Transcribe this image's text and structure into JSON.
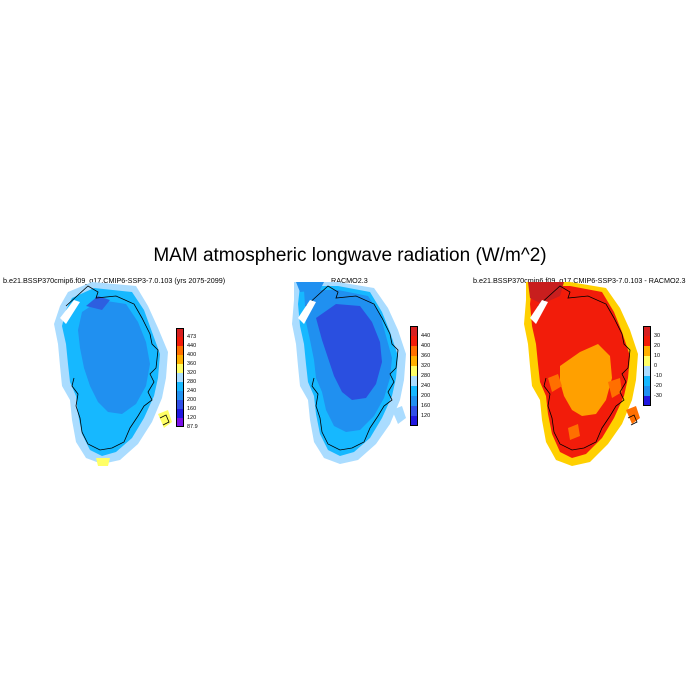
{
  "title": "MAM atmospheric longwave radiation (W/m^2)",
  "panels": [
    {
      "title": "b.e21.BSSP370cmip6.f09_g17.CMIP6-SSP3-7.0.103 (yrs 2075-2099)",
      "colorbar": {
        "labels": [
          "473",
          "440",
          "400",
          "360",
          "320",
          "280",
          "240",
          "200",
          "160",
          "120",
          "87.9"
        ],
        "colors": [
          "#d72020",
          "#f21c0a",
          "#ff6f00",
          "#ffb000",
          "#ffff66",
          "#aadcff",
          "#16b8ff",
          "#2090f0",
          "#3050e8",
          "#2018e0",
          "#7a10e8"
        ]
      },
      "fields": {
        "interior": "#2090f0",
        "coast": "#16b8ff",
        "rim": "#aadcff",
        "south": "#ffff66",
        "north": "#2d5fe0"
      }
    },
    {
      "title": "RACMO2.3",
      "colorbar": {
        "labels": [
          "440",
          "400",
          "360",
          "320",
          "280",
          "240",
          "200",
          "160",
          "120"
        ],
        "colors": [
          "#d72020",
          "#f21c0a",
          "#ff6f00",
          "#ffb000",
          "#ffff66",
          "#aadcff",
          "#16b8ff",
          "#2090f0",
          "#3050e8",
          "#2018e0"
        ]
      },
      "fields": {
        "interior": "#2a4fe0",
        "mid": "#2090f0",
        "coast": "#16b8ff",
        "rim": "#aadcff",
        "north": "#2090f0"
      }
    },
    {
      "title": "b.e21.BSSP370cmip6.f09_g17.CMIP6-SSP3-7.0.103 - RACMO2.3",
      "colorbar": {
        "labels": [
          "30",
          "20",
          "10",
          "0",
          "-10",
          "-20",
          "-30"
        ],
        "colors": [
          "#d72020",
          "#f21c0a",
          "#ffb000",
          "#ffff66",
          "#aadcff",
          "#16b8ff",
          "#2090f0",
          "#2018e0"
        ]
      },
      "fields": {
        "interior": "#f21c0a",
        "south": "#ffa000",
        "north": "#c81e1e",
        "coast": "#ff6f00",
        "rim": "#ffd000"
      }
    }
  ]
}
